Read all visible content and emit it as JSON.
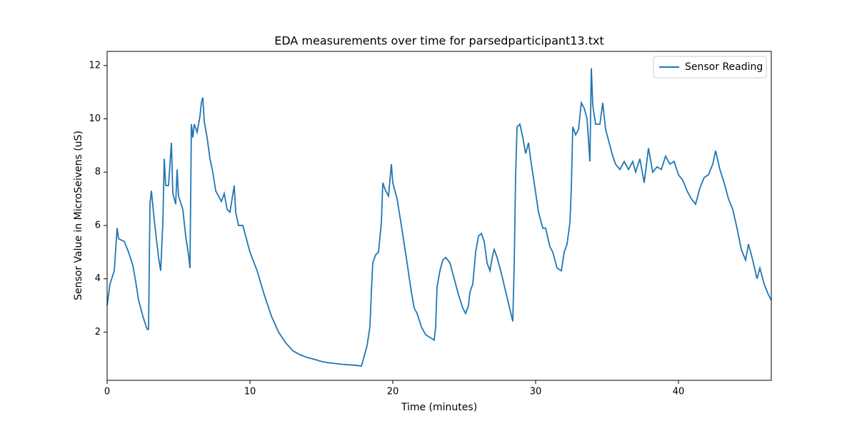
{
  "chart_data": {
    "type": "line",
    "title": "EDA measurements over time for parsedparticipant13.txt",
    "x_label": "Time (minutes)",
    "y_label": "Sensor Value in MicroSeivens (uS)",
    "x": [
      0,
      0.2,
      0.5,
      0.7,
      0.8,
      1.2,
      1.5,
      1.8,
      2.0,
      2.2,
      2.5,
      2.8,
      2.9,
      3.0,
      3.1,
      3.3,
      3.6,
      3.75,
      3.9,
      4.0,
      4.1,
      4.3,
      4.5,
      4.6,
      4.8,
      4.9,
      5.0,
      5.3,
      5.5,
      5.7,
      5.8,
      5.9,
      6.0,
      6.1,
      6.3,
      6.5,
      6.6,
      6.7,
      6.8,
      7.0,
      7.2,
      7.4,
      7.6,
      7.8,
      8.0,
      8.2,
      8.4,
      8.6,
      8.9,
      9.0,
      9.2,
      9.5,
      9.8,
      10.0,
      10.5,
      11.0,
      11.5,
      12.0,
      12.5,
      13.0,
      13.5,
      14.0,
      14.5,
      15.0,
      15.5,
      16.0,
      16.5,
      17.0,
      17.5,
      17.8,
      18.0,
      18.2,
      18.4,
      18.5,
      18.6,
      18.8,
      19.0,
      19.2,
      19.3,
      19.5,
      19.7,
      19.8,
      19.9,
      20.0,
      20.3,
      20.6,
      21.0,
      21.3,
      21.5,
      21.7,
      22.0,
      22.3,
      22.6,
      22.9,
      23.0,
      23.1,
      23.3,
      23.5,
      23.7,
      24.0,
      24.3,
      24.6,
      24.9,
      25.1,
      25.3,
      25.4,
      25.6,
      25.8,
      26.0,
      26.2,
      26.4,
      26.6,
      26.8,
      27.0,
      27.1,
      27.3,
      27.6,
      28.0,
      28.4,
      28.5,
      28.6,
      28.7,
      28.9,
      29.1,
      29.3,
      29.5,
      29.7,
      29.9,
      30.2,
      30.5,
      30.7,
      31.0,
      31.2,
      31.5,
      31.8,
      32.0,
      32.2,
      32.4,
      32.5,
      32.6,
      32.8,
      33.0,
      33.2,
      33.4,
      33.6,
      33.8,
      33.9,
      34.0,
      34.2,
      34.5,
      34.7,
      34.9,
      35.1,
      35.4,
      35.6,
      35.9,
      36.2,
      36.5,
      36.8,
      37.0,
      37.3,
      37.6,
      37.9,
      38.2,
      38.5,
      38.8,
      39.1,
      39.4,
      39.7,
      40.0,
      40.3,
      40.6,
      40.9,
      41.2,
      41.5,
      41.8,
      42.1,
      42.4,
      42.6,
      42.9,
      43.2,
      43.5,
      43.8,
      44.1,
      44.4,
      44.7,
      44.9,
      45.2,
      45.5,
      45.7,
      46.0,
      46.3,
      46.5
    ],
    "series": [
      {
        "name": "Sensor Reading",
        "color": "#1f77b4",
        "values": [
          3.0,
          3.8,
          4.3,
          5.9,
          5.5,
          5.4,
          5.0,
          4.5,
          3.9,
          3.2,
          2.6,
          2.1,
          2.1,
          6.8,
          7.3,
          6.2,
          4.8,
          4.3,
          6.1,
          8.5,
          7.5,
          7.5,
          9.1,
          7.2,
          6.8,
          8.1,
          7.1,
          6.6,
          5.6,
          4.9,
          4.4,
          9.8,
          9.3,
          9.8,
          9.5,
          10.1,
          10.6,
          10.8,
          9.9,
          9.3,
          8.5,
          8.0,
          7.3,
          7.1,
          6.9,
          7.2,
          6.6,
          6.5,
          7.5,
          6.5,
          6.0,
          6.0,
          5.4,
          5.0,
          4.3,
          3.4,
          2.6,
          2.0,
          1.6,
          1.3,
          1.15,
          1.05,
          0.98,
          0.9,
          0.85,
          0.82,
          0.79,
          0.77,
          0.75,
          0.72,
          1.1,
          1.5,
          2.2,
          3.5,
          4.6,
          4.9,
          5.0,
          6.1,
          7.6,
          7.3,
          7.1,
          7.7,
          8.3,
          7.6,
          7.0,
          6.0,
          4.6,
          3.5,
          2.9,
          2.7,
          2.2,
          1.9,
          1.8,
          1.7,
          2.2,
          3.7,
          4.3,
          4.7,
          4.8,
          4.6,
          4.0,
          3.4,
          2.9,
          2.7,
          3.0,
          3.5,
          3.8,
          5.0,
          5.6,
          5.7,
          5.4,
          4.6,
          4.3,
          4.9,
          5.1,
          4.8,
          4.2,
          3.3,
          2.4,
          4.5,
          7.9,
          9.7,
          9.8,
          9.3,
          8.7,
          9.1,
          8.3,
          7.6,
          6.5,
          5.9,
          5.9,
          5.2,
          5.0,
          4.4,
          4.3,
          5.0,
          5.3,
          6.1,
          7.4,
          9.7,
          9.4,
          9.6,
          10.6,
          10.4,
          10.0,
          8.4,
          11.9,
          10.5,
          9.8,
          9.8,
          10.6,
          9.6,
          9.2,
          8.6,
          8.3,
          8.1,
          8.4,
          8.1,
          8.4,
          8.0,
          8.5,
          7.6,
          8.9,
          8.0,
          8.2,
          8.1,
          8.6,
          8.3,
          8.4,
          7.9,
          7.7,
          7.3,
          7.0,
          6.8,
          7.4,
          7.8,
          7.9,
          8.3,
          8.8,
          8.1,
          7.6,
          7.0,
          6.6,
          5.9,
          5.1,
          4.7,
          5.3,
          4.7,
          4.0,
          4.4,
          3.8,
          3.4,
          3.2
        ]
      }
    ],
    "xlim": [
      0,
      46.5
    ],
    "ylim": [
      0.19,
      12.53
    ],
    "xticks": [
      0,
      10,
      20,
      30,
      40
    ],
    "yticks": [
      2,
      4,
      6,
      8,
      10,
      12
    ],
    "legend": "upper right"
  }
}
